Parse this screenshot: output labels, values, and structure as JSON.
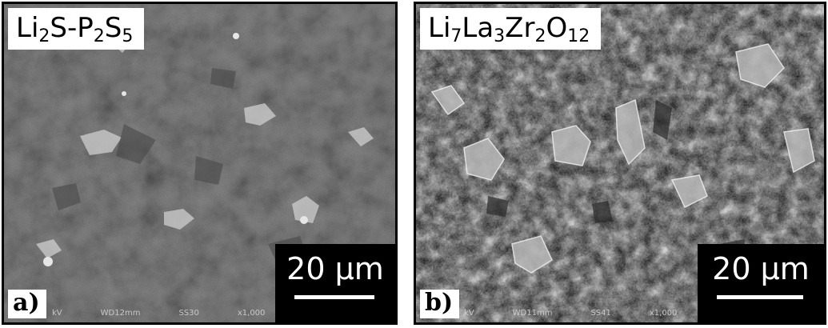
{
  "panels": [
    {
      "id": "a",
      "title_base1": "Li",
      "title_sub1": "2",
      "title_base2": "S-P",
      "title_sub2": "2",
      "title_base3": "S",
      "title_sub3": "5",
      "label": "a)",
      "scale": "20 μm",
      "meta": [
        "kV",
        "WD12mm",
        "SS30",
        "x1,000"
      ]
    },
    {
      "id": "b",
      "title_base1": "Li",
      "title_sub1": "7",
      "title_base2": "La",
      "title_sub2": "3",
      "title_base3": "Zr",
      "title_sub3": "2",
      "title_base4": "O",
      "title_sub4": "12",
      "label": "b)",
      "scale": "20 μm",
      "meta": [
        "kV",
        "WD11mm",
        "SS41",
        "x1,000"
      ]
    }
  ]
}
